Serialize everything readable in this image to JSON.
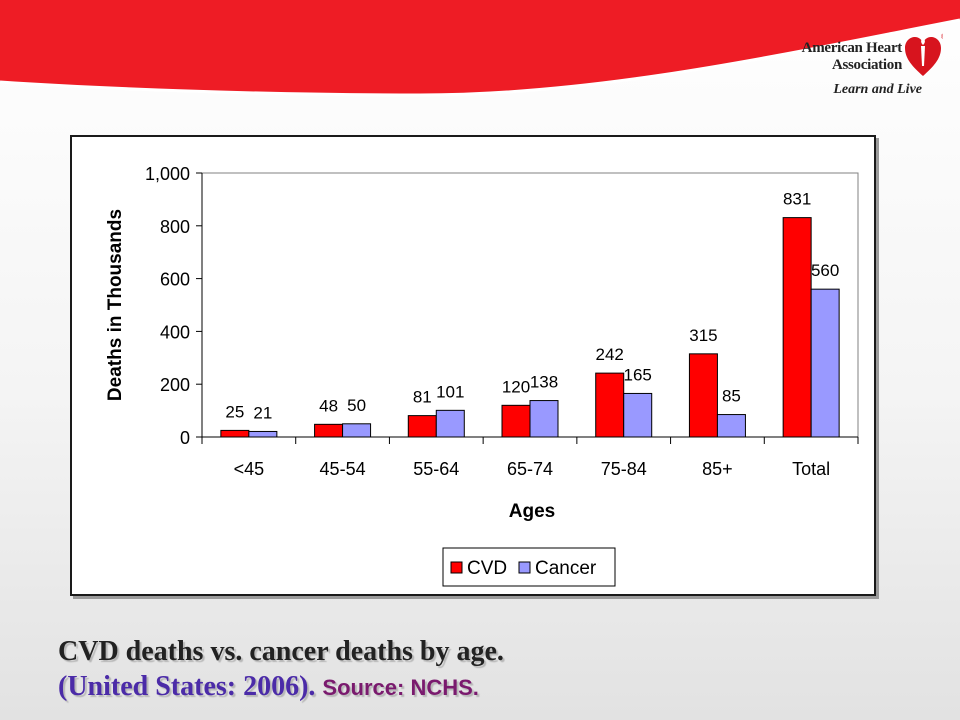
{
  "logo": {
    "line1": "American Heart",
    "line2": "Association",
    "tagline": "Learn and Live",
    "registered": "®"
  },
  "caption": {
    "line1": "CVD deaths vs. cancer deaths by age.",
    "line2": "(United States: 2006).",
    "source": "Source: NCHS."
  },
  "colors": {
    "banner": "#ee1c25",
    "cvd": "#ff0000",
    "cancer": "#9999ff"
  },
  "chart_data": {
    "type": "bar",
    "title": "",
    "xlabel": "Ages",
    "ylabel": "Deaths in Thousands",
    "ylim": [
      0,
      1000
    ],
    "yticks": [
      "0",
      "200",
      "400",
      "600",
      "800",
      "1,000"
    ],
    "ytick_values": [
      0,
      200,
      400,
      600,
      800,
      1000
    ],
    "categories": [
      "<45",
      "45-54",
      "55-64",
      "65-74",
      "75-84",
      "85+",
      "Total"
    ],
    "series": [
      {
        "name": "CVD",
        "values": [
          25,
          48,
          81,
          120,
          242,
          315,
          831
        ],
        "labels": [
          "25",
          "48",
          "81",
          "120",
          "242",
          "315",
          "831"
        ]
      },
      {
        "name": "Cancer",
        "values": [
          21,
          50,
          101,
          138,
          165,
          85,
          560
        ],
        "labels": [
          "21",
          "50",
          "101",
          "138",
          "165",
          "85",
          "560"
        ]
      }
    ],
    "legend_position": "bottom-center",
    "grid": false
  }
}
